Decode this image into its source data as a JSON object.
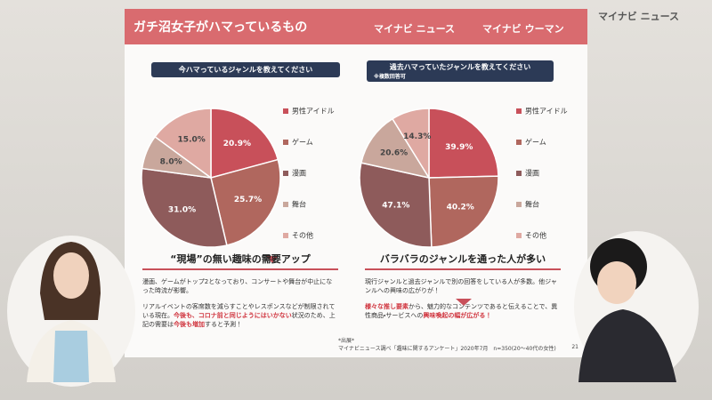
{
  "header": {
    "title": "ガチ沼女子がハマっているもの",
    "logo1": "マイナビ ニュース",
    "logo2": "マイナビ ウーマン",
    "overlay_logo": "マイナビ ニュース"
  },
  "chart_data": [
    {
      "type": "pie",
      "title": "今ハマっているジャンルを教えてください",
      "categories": [
        "男性アイドル",
        "ゲーム",
        "漫画",
        "舞台",
        "その他"
      ],
      "values": [
        20.9,
        25.7,
        31.0,
        8.0,
        15.0
      ],
      "value_labels": [
        "20.9%",
        "25.7%",
        "31.0%",
        "8.0%",
        "15.0%"
      ],
      "colors": [
        "#c8505a",
        "#b0675e",
        "#8e5b5b",
        "#c9a79c",
        "#dfa9a2"
      ]
    },
    {
      "type": "pie",
      "title": "過去ハマっていたジャンルを教えてください",
      "subtitle": "※複数回答可",
      "categories": [
        "男性アイドル",
        "ゲーム",
        "漫画",
        "舞台",
        "その他"
      ],
      "values": [
        39.9,
        40.2,
        47.1,
        20.6,
        14.3
      ],
      "value_labels": [
        "39.9%",
        "40.2%",
        "47.1%",
        "20.6%",
        "14.3%"
      ],
      "colors": [
        "#c8505a",
        "#b0675e",
        "#8e5b5b",
        "#c9a79c",
        "#dfa9a2"
      ]
    }
  ],
  "notes": [
    {
      "heading": "“現場”の無い趣味の需要アップ",
      "paragraphs": [
        [
          {
            "text": "漫画、ゲームがトップ2となっており、コンサートや舞台が中止になった時流が影響。",
            "red": false
          }
        ],
        [
          {
            "text": "リアルイベントの客席数を減らすことやレスポンスなどが制限されている現在。",
            "red": false
          },
          {
            "text": "今後も、コロナ前と同じようにはいかない",
            "red": true
          },
          {
            "text": "状況のため、上記の需要は",
            "red": false
          },
          {
            "text": "今後も増加",
            "red": true
          },
          {
            "text": "すると予測！",
            "red": false
          }
        ]
      ]
    },
    {
      "heading": "バラバラのジャンルを通った人が多い",
      "paragraphs": [
        [
          {
            "text": "現行ジャンルと過去ジャンルで別の回答をしている人が多数。他ジャンルへの興味の広がりが！",
            "red": false
          }
        ],
        [
          {
            "text": "様々な推し要素",
            "red": true
          },
          {
            "text": "から、魅力的なコンテンツであると伝えることで、異性商品・サービスへの",
            "red": false
          },
          {
            "text": "興味喚起の幅が広がる！",
            "red": true
          }
        ]
      ]
    }
  ],
  "footer": {
    "source_label": "*出展*",
    "source": "マイナビニュース調べ「趣味に関するアンケート」2020年7月　n=350(20〜40代の女性)",
    "page": "21"
  }
}
